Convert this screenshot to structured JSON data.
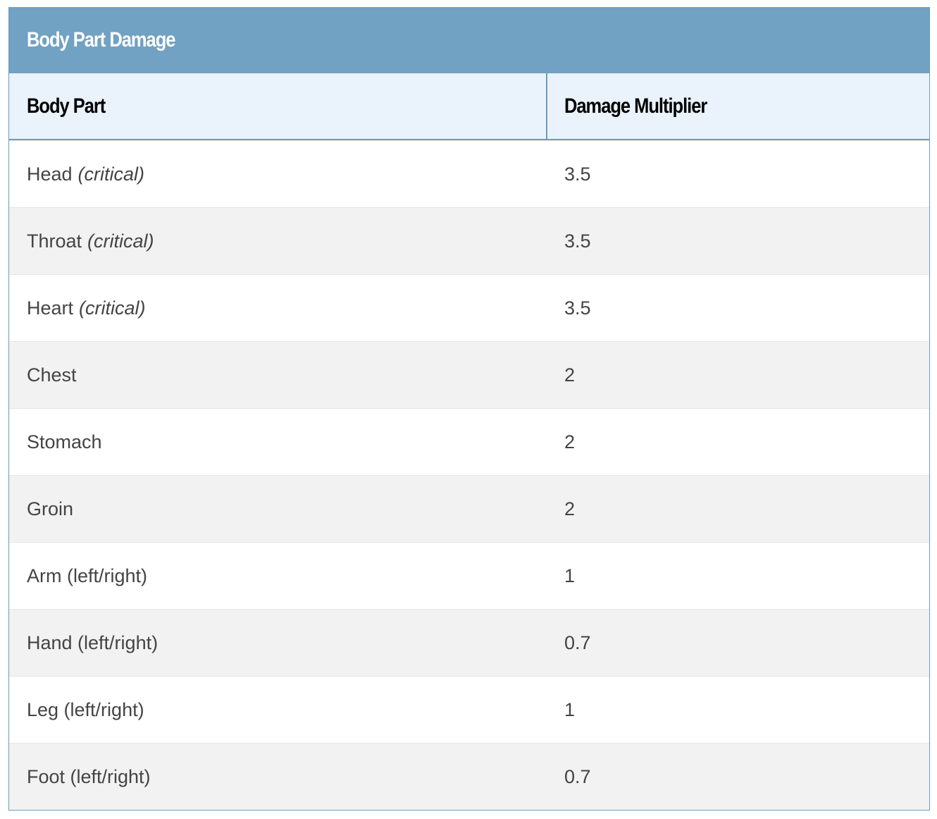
{
  "table": {
    "title": "Body Part Damage",
    "headers": [
      "Body Part",
      "Damage Multiplier"
    ],
    "rows": [
      {
        "part": "Head",
        "note": "(critical)",
        "multiplier": 3.5
      },
      {
        "part": "Throat",
        "note": "(critical)",
        "multiplier": 3.5
      },
      {
        "part": "Heart",
        "note": "(critical)",
        "multiplier": 3.5
      },
      {
        "part": "Chest",
        "multiplier": 2
      },
      {
        "part": "Stomach",
        "multiplier": 2
      },
      {
        "part": "Groin",
        "multiplier": 2
      },
      {
        "part": "Arm (left/right)",
        "multiplier": 1
      },
      {
        "part": "Hand (left/right)",
        "multiplier": 0.7
      },
      {
        "part": "Leg (left/right)",
        "multiplier": 1
      },
      {
        "part": "Foot (left/right)",
        "multiplier": 0.7
      }
    ]
  }
}
